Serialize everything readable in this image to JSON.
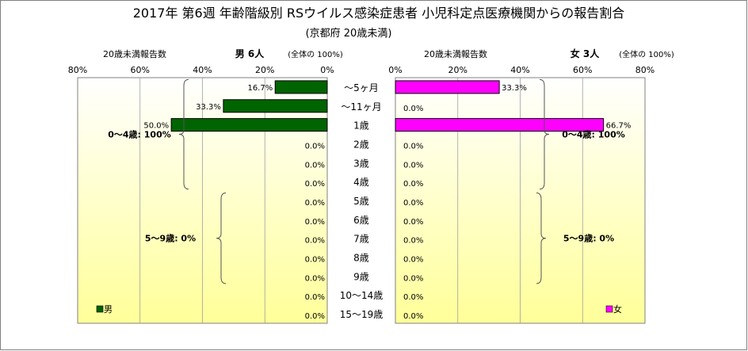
{
  "title": "2017年 第6週 年齢階級別 RSウイルス感染症患者 小児科定点医療機関からの報告割合",
  "subtitle": "(京都府 20歳未満)",
  "colors": {
    "male": "#006400",
    "female": "#ff00ff",
    "plot_bg_top": "#ffffff",
    "plot_bg_bottom": "#ffff99",
    "grid": "#a0a0a0"
  },
  "chart_data": {
    "type": "bar",
    "orientation": "horizontal-population-pyramid",
    "categories": [
      "~5ヶ月",
      "~11ヶ月",
      "1歳",
      "2歳",
      "3歳",
      "4歳",
      "5歳",
      "6歳",
      "7歳",
      "8歳",
      "9歳",
      "10~14歳",
      "15~19歳"
    ],
    "category_labels": [
      "〜5ヶ月",
      "〜11ヶ月",
      "1歳",
      "2歳",
      "3歳",
      "4歳",
      "5歳",
      "6歳",
      "7歳",
      "8歳",
      "9歳",
      "10〜14歳",
      "15〜19歳"
    ],
    "xlim": [
      0,
      80
    ],
    "x_ticks": [
      "80%",
      "60%",
      "40%",
      "20%",
      "0%"
    ],
    "x_ticks_right": [
      "0%",
      "20%",
      "40%",
      "60%",
      "80%"
    ],
    "tick_values_left": [
      80,
      60,
      40,
      20,
      0
    ],
    "tick_values_right": [
      0,
      20,
      40,
      60,
      80
    ],
    "grid": true,
    "series": [
      {
        "name": "男",
        "side": "left",
        "header_left": "20歳未満報告数",
        "header_right": "男  6人",
        "header_note": "(全体の  100%)",
        "values": [
          16.7,
          33.3,
          50.0,
          0,
          0,
          0,
          0,
          0,
          0,
          0,
          0,
          0,
          0
        ],
        "labels": [
          "16.7%",
          "33.3%",
          "50.0%",
          "0.0%",
          "0.0%",
          "0.0%",
          "0.0%",
          "0.0%",
          "0.0%",
          "0.0%",
          "0.0%",
          "0.0%",
          "0.0%"
        ],
        "legend": "男",
        "group_annotations": [
          {
            "text": "0〜4歳: 100%",
            "from": 0,
            "to": 5
          },
          {
            "text": "5〜9歳: 0%",
            "from": 6,
            "to": 10
          }
        ]
      },
      {
        "name": "女",
        "side": "right",
        "header_left": "20歳未満報告数",
        "header_right": "女  3人",
        "header_note": "(全体の  100%)",
        "values": [
          33.3,
          0,
          66.7,
          0,
          0,
          0,
          0,
          0,
          0,
          0,
          0,
          0,
          0
        ],
        "labels": [
          "33.3%",
          "0.0%",
          "66.7%",
          "0.0%",
          "0.0%",
          "0.0%",
          "0.0%",
          "0.0%",
          "0.0%",
          "0.0%",
          "0.0%",
          "0.0%",
          "0.0%"
        ],
        "legend": "女",
        "group_annotations": [
          {
            "text": "0〜4歳: 100%",
            "from": 0,
            "to": 5
          },
          {
            "text": "5〜9歳: 0%",
            "from": 6,
            "to": 10
          }
        ]
      }
    ]
  }
}
